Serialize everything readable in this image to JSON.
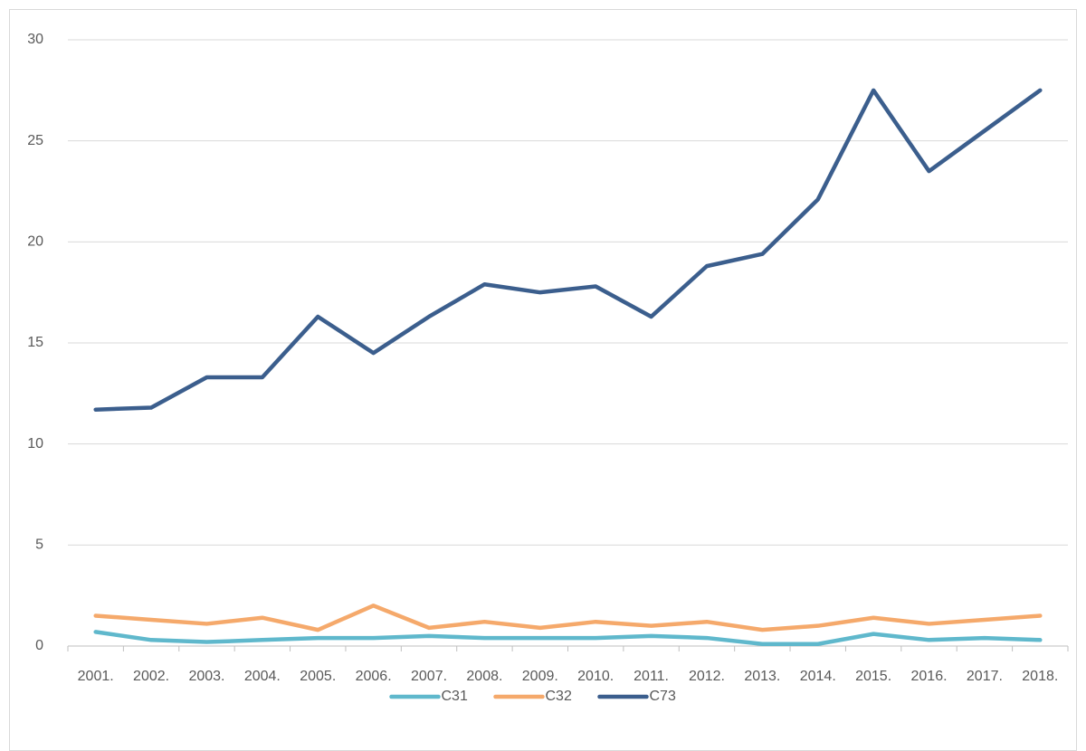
{
  "chart_data": {
    "type": "line",
    "categories": [
      "2001.",
      "2002.",
      "2003.",
      "2004.",
      "2005.",
      "2006.",
      "2007.",
      "2008.",
      "2009.",
      "2010.",
      "2011.",
      "2012.",
      "2013.",
      "2014.",
      "2015.",
      "2016.",
      "2017.",
      "2018."
    ],
    "series": [
      {
        "name": "C31",
        "color": "#5fb8cc",
        "values": [
          0.7,
          0.3,
          0.2,
          0.3,
          0.4,
          0.4,
          0.5,
          0.4,
          0.4,
          0.4,
          0.5,
          0.4,
          0.1,
          0.1,
          0.6,
          0.3,
          0.4,
          0.3
        ]
      },
      {
        "name": "C32",
        "color": "#f5a96b",
        "values": [
          1.5,
          1.3,
          1.1,
          1.4,
          0.8,
          2.0,
          0.9,
          1.2,
          0.9,
          1.2,
          1.0,
          1.2,
          0.8,
          1.0,
          1.4,
          1.1,
          1.3,
          1.5
        ]
      },
      {
        "name": "C73",
        "color": "#3b5e8d",
        "values": [
          11.7,
          11.8,
          13.3,
          13.3,
          16.3,
          14.5,
          16.3,
          17.9,
          17.5,
          17.8,
          16.3,
          18.8,
          19.4,
          22.1,
          27.5,
          23.5,
          25.5,
          27.5
        ]
      }
    ],
    "ylim": [
      0,
      30
    ],
    "yticks": [
      0,
      5,
      10,
      15,
      20,
      25,
      30
    ],
    "grid": true,
    "legend": "bottom"
  }
}
